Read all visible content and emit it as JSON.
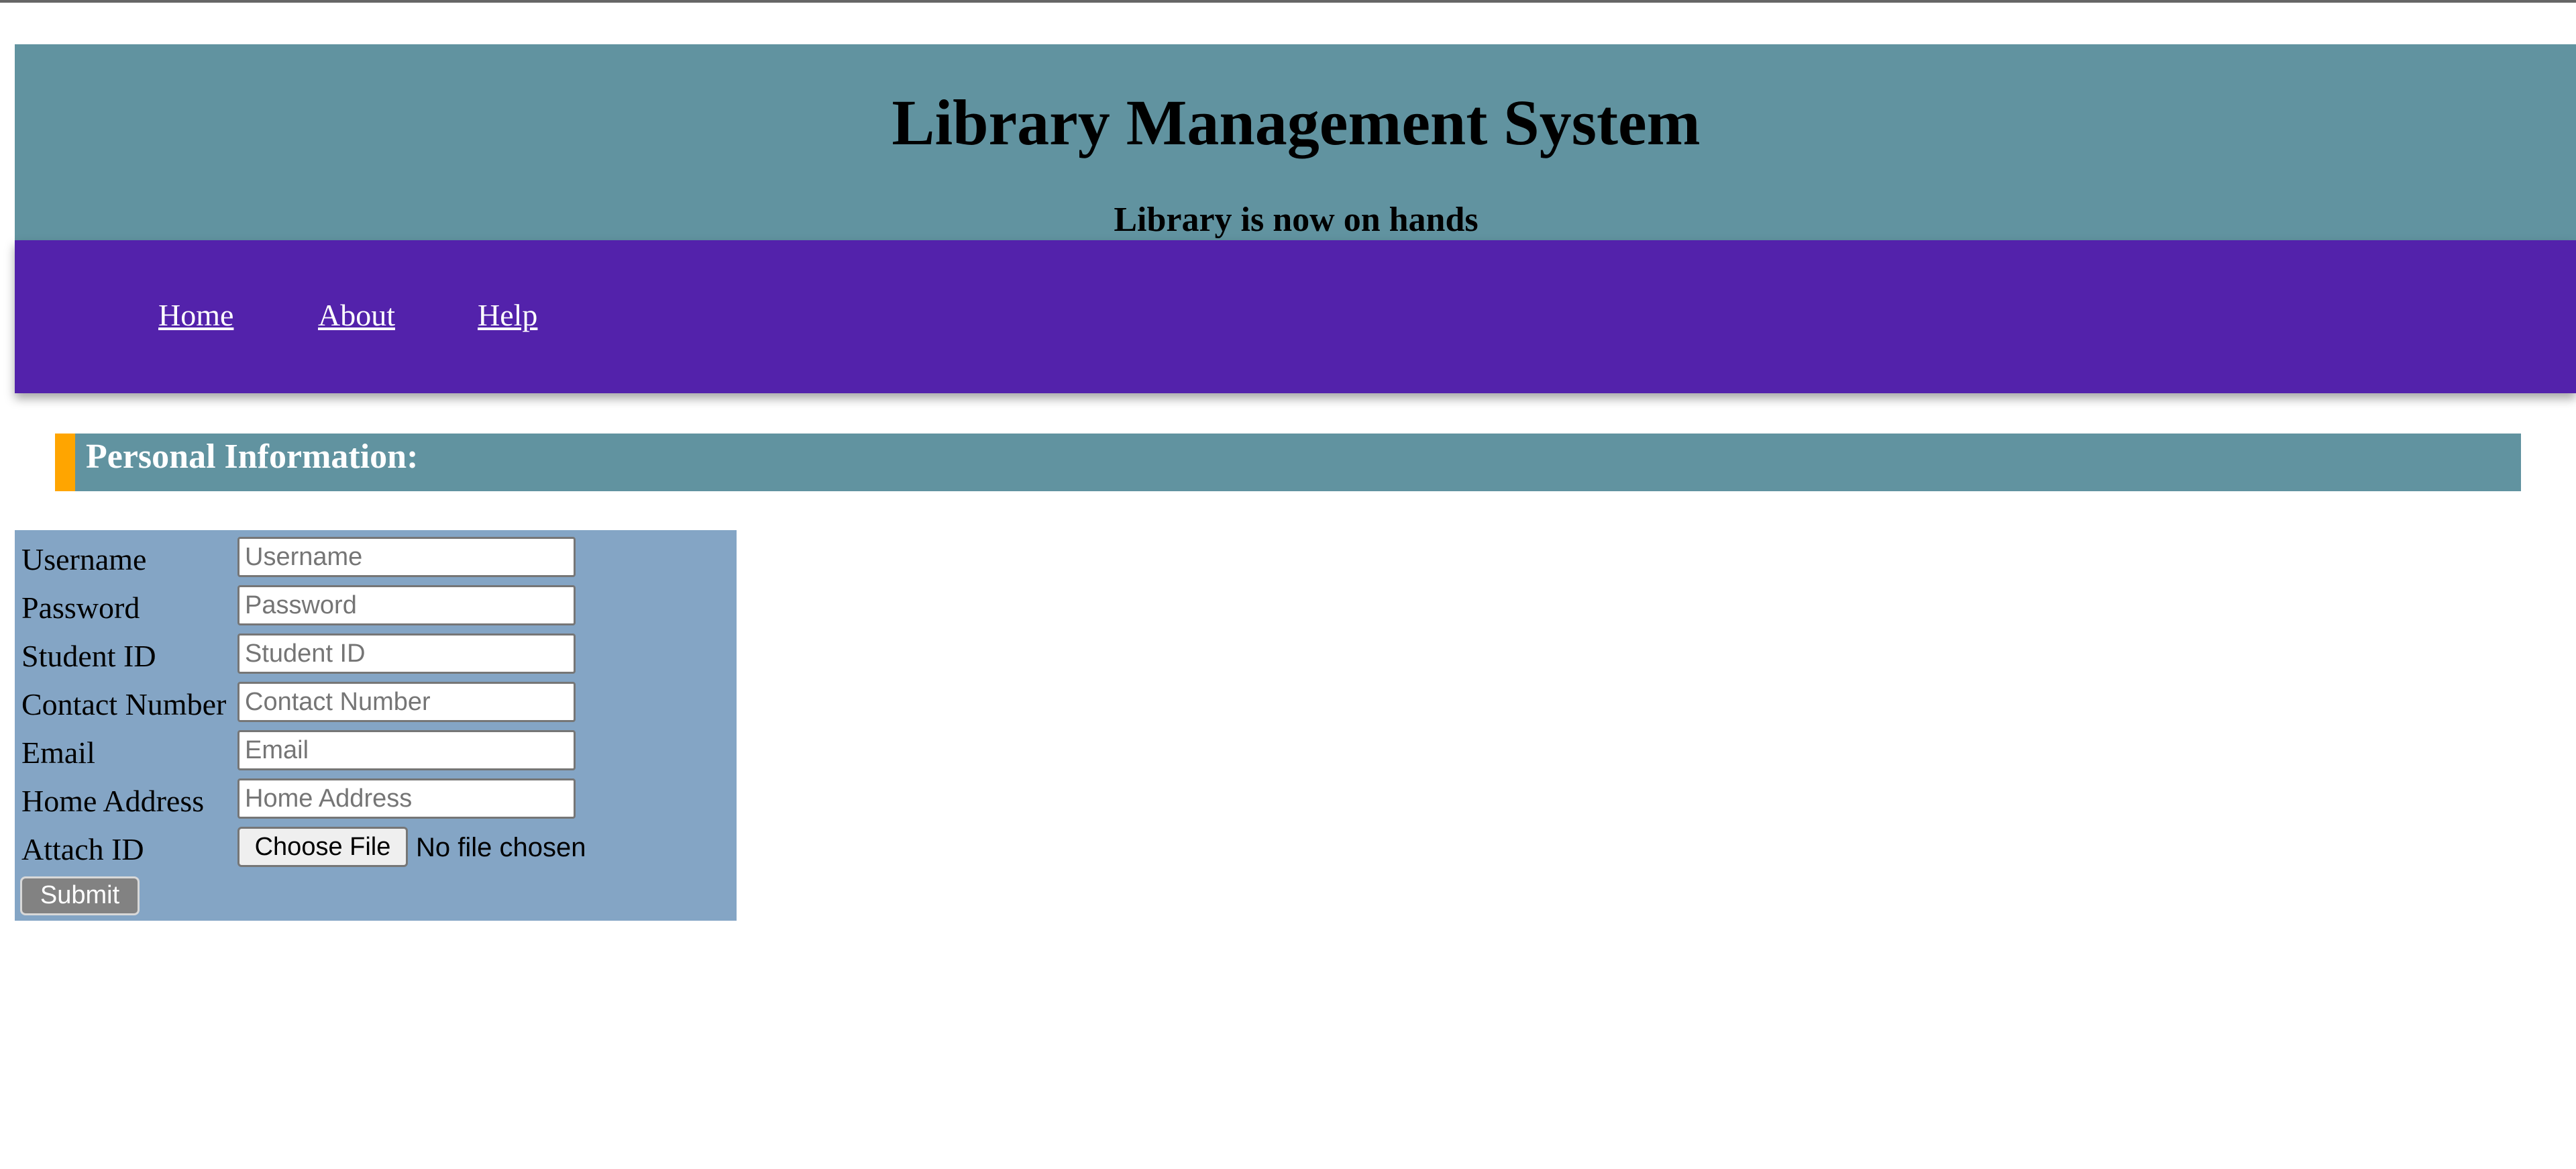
{
  "header": {
    "title": "Library Management System",
    "subtitle": "Library is now on hands"
  },
  "nav": {
    "items": [
      {
        "label": "Home"
      },
      {
        "label": "About"
      },
      {
        "label": "Help"
      }
    ]
  },
  "section": {
    "title": "Personal Information:"
  },
  "form": {
    "fields": [
      {
        "label": "Username",
        "placeholder": "Username",
        "value": ""
      },
      {
        "label": "Password",
        "placeholder": "Password",
        "value": ""
      },
      {
        "label": "Student ID",
        "placeholder": "Student ID",
        "value": ""
      },
      {
        "label": "Contact Number",
        "placeholder": "Contact Number",
        "value": ""
      },
      {
        "label": "Email",
        "placeholder": "Email",
        "value": ""
      },
      {
        "label": "Home Address",
        "placeholder": "Home Address",
        "value": ""
      }
    ],
    "attach": {
      "label": "Attach ID",
      "button_label": "Choose File",
      "status": "No file chosen"
    },
    "submit_label": "Submit"
  },
  "colors": {
    "header_bg": "#6193a0",
    "nav_bg": "#5322ab",
    "section_accent": "#ffa500",
    "form_bg": "#84a5c5",
    "submit_bg": "#828282"
  }
}
